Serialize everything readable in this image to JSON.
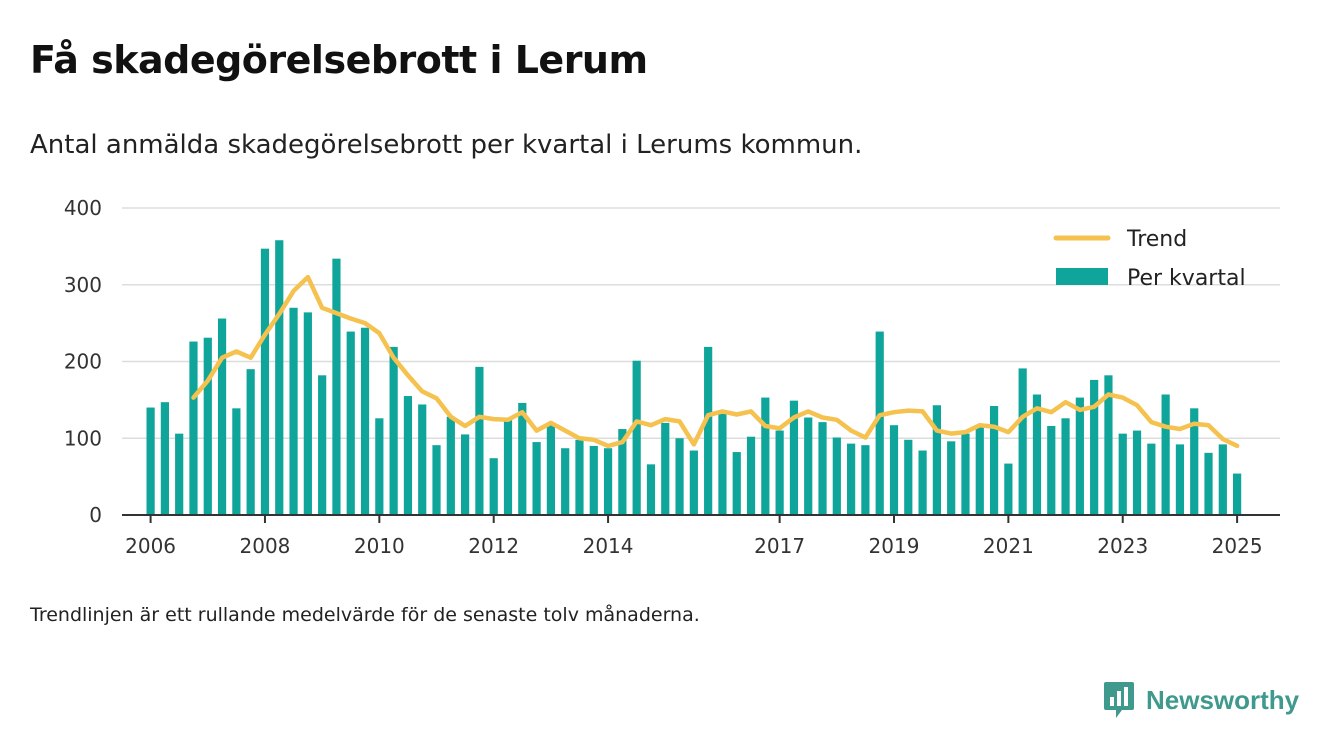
{
  "title": "Få skadegörelsebrott i Lerum",
  "subtitle": "Antal anmälda skadegörelsebrott per kvartal i Lerums kommun.",
  "footnote": "Trendlinjen är ett rullande medelvärde för de senaste tolv månaderna.",
  "brand": {
    "name": "Newsworthy",
    "icon": "newsworthy-logo-icon"
  },
  "colors": {
    "bars": "#10a59a",
    "trend": "#f5c14f",
    "grid": "#dddddd",
    "axis": "#333333",
    "brand": "#3f9a8d"
  },
  "chart_data": {
    "type": "bar",
    "grid": true,
    "legend_placement": "top-right",
    "ylim": [
      0,
      400
    ],
    "yticks": [
      0,
      100,
      200,
      300,
      400
    ],
    "xticks": [
      "2006",
      "2008",
      "2010",
      "2012",
      "2014",
      "2017",
      "2019",
      "2021",
      "2023",
      "2025"
    ],
    "xlim": [
      "2005-Q3",
      "2025-Q4"
    ],
    "xtick_positions": [
      "2006-Q1",
      "2008-Q1",
      "2010-Q1",
      "2012-Q1",
      "2014-Q1",
      "2017-Q1",
      "2019-Q1",
      "2021-Q1",
      "2023-Q1",
      "2025-Q1"
    ],
    "series": [
      {
        "name": "Per kvartal",
        "type": "bar",
        "x": [
          "2006-Q1",
          "2006-Q2",
          "2006-Q3",
          "2006-Q4",
          "2007-Q1",
          "2007-Q2",
          "2007-Q3",
          "2007-Q4",
          "2008-Q1",
          "2008-Q2",
          "2008-Q3",
          "2008-Q4",
          "2009-Q1",
          "2009-Q2",
          "2009-Q3",
          "2009-Q4",
          "2010-Q1",
          "2010-Q2",
          "2010-Q3",
          "2010-Q4",
          "2011-Q1",
          "2011-Q2",
          "2011-Q3",
          "2011-Q4",
          "2012-Q1",
          "2012-Q2",
          "2012-Q3",
          "2012-Q4",
          "2013-Q1",
          "2013-Q2",
          "2013-Q3",
          "2013-Q4",
          "2014-Q1",
          "2014-Q2",
          "2014-Q3",
          "2014-Q4",
          "2015-Q1",
          "2015-Q2",
          "2015-Q3",
          "2015-Q4",
          "2016-Q1",
          "2016-Q2",
          "2016-Q3",
          "2016-Q4",
          "2017-Q1",
          "2017-Q2",
          "2017-Q3",
          "2017-Q4",
          "2018-Q1",
          "2018-Q2",
          "2018-Q3",
          "2018-Q4",
          "2019-Q1",
          "2019-Q2",
          "2019-Q3",
          "2019-Q4",
          "2020-Q1",
          "2020-Q2",
          "2020-Q3",
          "2020-Q4",
          "2021-Q1",
          "2021-Q2",
          "2021-Q3",
          "2021-Q4",
          "2022-Q1",
          "2022-Q2",
          "2022-Q3",
          "2022-Q4",
          "2023-Q1",
          "2023-Q2",
          "2023-Q3",
          "2023-Q4",
          "2024-Q1",
          "2024-Q2",
          "2024-Q3",
          "2024-Q4",
          "2025-Q1"
        ],
        "values": [
          140,
          147,
          106,
          226,
          231,
          256,
          139,
          190,
          347,
          358,
          270,
          264,
          182,
          334,
          239,
          244,
          126,
          219,
          155,
          144,
          91,
          128,
          105,
          193,
          74,
          125,
          146,
          95,
          117,
          87,
          98,
          90,
          87,
          112,
          201,
          66,
          120,
          100,
          84,
          219,
          132,
          82,
          102,
          153,
          110,
          149,
          127,
          121,
          101,
          93,
          91,
          239,
          117,
          98,
          84,
          143,
          96,
          106,
          116,
          142,
          67,
          191,
          157,
          116,
          126,
          153,
          176,
          182,
          106,
          110,
          93,
          157,
          92,
          139,
          81,
          92,
          54
        ]
      },
      {
        "name": "Trend",
        "type": "line",
        "x": [
          "2006-Q4",
          "2007-Q1",
          "2007-Q2",
          "2007-Q3",
          "2007-Q4",
          "2008-Q1",
          "2008-Q2",
          "2008-Q3",
          "2008-Q4",
          "2009-Q1",
          "2009-Q2",
          "2009-Q3",
          "2009-Q4",
          "2010-Q1",
          "2010-Q2",
          "2010-Q3",
          "2010-Q4",
          "2011-Q1",
          "2011-Q2",
          "2011-Q3",
          "2011-Q4",
          "2012-Q1",
          "2012-Q2",
          "2012-Q3",
          "2012-Q4",
          "2013-Q1",
          "2013-Q2",
          "2013-Q3",
          "2013-Q4",
          "2014-Q1",
          "2014-Q2",
          "2014-Q3",
          "2014-Q4",
          "2015-Q1",
          "2015-Q2",
          "2015-Q3",
          "2015-Q4",
          "2016-Q1",
          "2016-Q2",
          "2016-Q3",
          "2016-Q4",
          "2017-Q1",
          "2017-Q2",
          "2017-Q3",
          "2017-Q4",
          "2018-Q1",
          "2018-Q2",
          "2018-Q3",
          "2018-Q4",
          "2019-Q1",
          "2019-Q2",
          "2019-Q3",
          "2019-Q4",
          "2020-Q1",
          "2020-Q2",
          "2020-Q3",
          "2020-Q4",
          "2021-Q1",
          "2021-Q2",
          "2021-Q3",
          "2021-Q4",
          "2022-Q1",
          "2022-Q2",
          "2022-Q3",
          "2022-Q4",
          "2023-Q1",
          "2023-Q2",
          "2023-Q3",
          "2023-Q4",
          "2024-Q1",
          "2024-Q2",
          "2024-Q3",
          "2024-Q4",
          "2025-Q1"
        ],
        "values": [
          153,
          175,
          205,
          213,
          205,
          235,
          262,
          292,
          310,
          270,
          263,
          256,
          250,
          237,
          205,
          182,
          161,
          152,
          128,
          116,
          128,
          125,
          124,
          134,
          110,
          120,
          110,
          100,
          98,
          90,
          95,
          122,
          117,
          125,
          122,
          92,
          130,
          135,
          131,
          135,
          116,
          113,
          127,
          135,
          127,
          124,
          110,
          101,
          130,
          134,
          136,
          135,
          110,
          106,
          108,
          117,
          115,
          108,
          128,
          139,
          134,
          147,
          137,
          141,
          157,
          153,
          143,
          121,
          115,
          112,
          119,
          117,
          99,
          90
        ]
      }
    ]
  }
}
